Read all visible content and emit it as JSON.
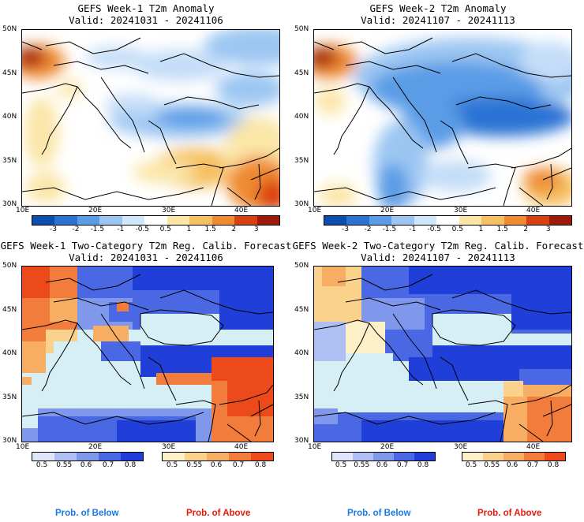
{
  "panels": [
    {
      "title": "GEFS Week-1 T2m Anomaly",
      "valid": "Valid: 20241031 - 20241106",
      "kind": "anomaly"
    },
    {
      "title": "GEFS Week-2 T2m Anomaly",
      "valid": "Valid: 20241107 - 20241113",
      "kind": "anomaly"
    },
    {
      "title": "GEFS Week-1 Two-Category T2m Reg. Calib. Forecast",
      "valid": "Valid: 20241031 - 20241106",
      "kind": "prob"
    },
    {
      "title": "GEFS Week-2 Two-Category T2m Reg. Calib. Forecast",
      "valid": "Valid: 20241107 - 20241113",
      "kind": "prob"
    }
  ],
  "lat_labels": [
    "50N",
    "45N",
    "40N",
    "35N",
    "30N"
  ],
  "lon_labels": [
    "10E",
    "20E",
    "30E",
    "40E"
  ],
  "anomaly_colorbar": {
    "ticks": [
      "-3",
      "-2",
      "-1.5",
      "-1",
      "-0.5",
      "0.5",
      "1",
      "1.5",
      "2",
      "3"
    ],
    "colors": [
      "#0a4fb0",
      "#2a73d4",
      "#5a9ce6",
      "#9cc6f2",
      "#d0e6fa",
      "#ffffff",
      "#fbe6a8",
      "#f5c060",
      "#ee8a30",
      "#d94010",
      "#a01808"
    ]
  },
  "prob_colorbar_below": {
    "ticks": [
      "0.5",
      "0.55",
      "0.6",
      "0.7",
      "0.8"
    ],
    "colors": [
      "#dfe6fb",
      "#aebff3",
      "#7f98ec",
      "#4a68e4",
      "#1f3fd8"
    ]
  },
  "prob_colorbar_above": {
    "ticks": [
      "0.5",
      "0.55",
      "0.6",
      "0.7",
      "0.8"
    ],
    "colors": [
      "#fdf0c8",
      "#fbd28c",
      "#f7ae63",
      "#f27c3c",
      "#ec4a1a"
    ]
  },
  "legend": {
    "below_label": "Prob. of Below",
    "above_label": "Prob. of Above",
    "below_color": "#1a78e6",
    "above_color": "#e61a0a"
  }
}
